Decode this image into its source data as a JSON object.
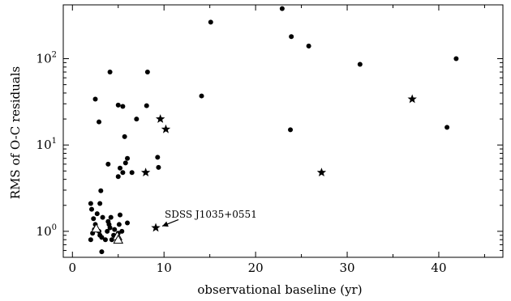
{
  "chart_data": {
    "type": "scatter",
    "title": "",
    "xlabel": "observational baseline (yr)",
    "ylabel": "RMS of O-C residuals",
    "xlim": [
      -1,
      47
    ],
    "ylim": [
      0.5,
      420
    ],
    "xscale": "linear",
    "yscale": "log",
    "grid": false,
    "x_ticks": [
      0,
      10,
      20,
      30,
      40
    ],
    "x_minor_ticks": [
      5,
      15,
      25,
      35,
      45
    ],
    "y_ticks": [
      {
        "value": 1,
        "base": "10",
        "exp": "0"
      },
      {
        "value": 10,
        "base": "10",
        "exp": "1"
      },
      {
        "value": 100,
        "base": "10",
        "exp": "2"
      }
    ],
    "series": [
      {
        "marker": "circle",
        "points": [
          [
            2.0,
            2.1
          ],
          [
            2.1,
            1.8
          ],
          [
            2.3,
            1.4
          ],
          [
            2.5,
            1.2
          ],
          [
            2.4,
            1.05
          ],
          [
            2.2,
            0.95
          ],
          [
            2.0,
            0.8
          ],
          [
            2.7,
            1.6
          ],
          [
            2.9,
            1.0
          ],
          [
            3.0,
            0.9
          ],
          [
            3.2,
            0.85
          ],
          [
            3.3,
            1.45
          ],
          [
            3.0,
            2.1
          ],
          [
            3.1,
            2.95
          ],
          [
            3.2,
            0.58
          ],
          [
            3.6,
            0.8
          ],
          [
            3.8,
            1.0
          ],
          [
            3.9,
            1.3
          ],
          [
            4.0,
            1.2
          ],
          [
            4.1,
            1.1
          ],
          [
            4.2,
            1.45
          ],
          [
            4.3,
            0.8
          ],
          [
            4.5,
            0.9
          ],
          [
            4.6,
            1.05
          ],
          [
            5.0,
            0.95
          ],
          [
            5.1,
            1.2
          ],
          [
            5.2,
            1.55
          ],
          [
            5.4,
            1.0
          ],
          [
            6.0,
            1.25
          ],
          [
            3.9,
            6.0
          ],
          [
            4.1,
            70.0
          ],
          [
            5.0,
            4.3
          ],
          [
            5.2,
            5.4
          ],
          [
            5.5,
            4.8
          ],
          [
            5.8,
            6.2
          ],
          [
            6.0,
            7.0
          ],
          [
            6.5,
            4.8
          ],
          [
            5.5,
            28.0
          ],
          [
            5.0,
            29.0
          ],
          [
            5.7,
            12.5
          ],
          [
            7.0,
            20.0
          ],
          [
            8.1,
            28.5
          ],
          [
            8.2,
            70.0
          ],
          [
            2.5,
            34.0
          ],
          [
            2.9,
            18.5
          ],
          [
            9.3,
            7.2
          ],
          [
            9.4,
            5.5
          ],
          [
            14.1,
            37.0
          ],
          [
            15.1,
            265.0
          ],
          [
            22.9,
            380.0
          ],
          [
            23.9,
            180.0
          ],
          [
            23.8,
            15.0
          ],
          [
            25.8,
            140.0
          ],
          [
            31.4,
            86.0
          ],
          [
            40.9,
            16.0
          ],
          [
            41.9,
            100.0
          ]
        ]
      },
      {
        "marker": "star",
        "points": [
          [
            9.1,
            1.1
          ],
          [
            9.6,
            20.0
          ],
          [
            10.2,
            15.2
          ],
          [
            8.0,
            4.8
          ],
          [
            27.2,
            4.8
          ],
          [
            37.1,
            34.0
          ]
        ]
      },
      {
        "marker": "triangle",
        "points": [
          [
            2.6,
            1.08
          ],
          [
            4.9,
            0.88
          ],
          [
            5.0,
            0.8
          ]
        ]
      }
    ],
    "annotation": {
      "text": "SDSS J1035+0551",
      "target": [
        9.1,
        1.1
      ]
    }
  }
}
